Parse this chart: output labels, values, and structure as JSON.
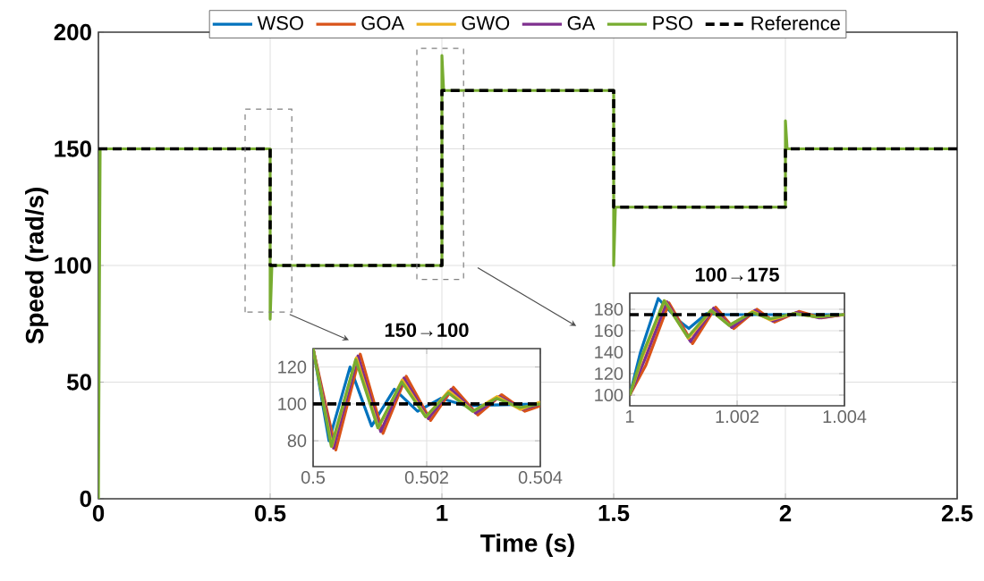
{
  "chart_data": [
    {
      "type": "line",
      "xlabel": "Time (s)",
      "ylabel": "Speed (rad/s)",
      "xlim": [
        0,
        2.5
      ],
      "ylim": [
        0,
        200
      ],
      "xticks": [
        0,
        0.5,
        1,
        1.5,
        2,
        2.5
      ],
      "yticks": [
        0,
        50,
        100,
        150,
        200
      ],
      "grid": true,
      "legend": "top",
      "marker": "none",
      "series": [
        {
          "name": "WSO",
          "color": "#0072bd"
        },
        {
          "name": "GOA",
          "color": "#d95319"
        },
        {
          "name": "GWO",
          "color": "#edb120"
        },
        {
          "name": "GA",
          "color": "#7e2f8e"
        },
        {
          "name": "PSO",
          "color": "#77ac30",
          "x": [
            0,
            0.005,
            0.5,
            0.5,
            0.505,
            1,
            1,
            1.005,
            1.5,
            1.5,
            1.505,
            2,
            2,
            2.005,
            2.5
          ],
          "values": [
            0,
            150,
            150,
            77,
            100,
            100,
            190,
            175,
            175,
            100,
            125,
            125,
            162,
            150,
            150
          ]
        },
        {
          "name": "Reference",
          "color": "#000000",
          "line_style": "dashed",
          "x": [
            0,
            0.5,
            0.5,
            1,
            1,
            1.5,
            1.5,
            2,
            2,
            2.5
          ],
          "values": [
            150,
            150,
            100,
            100,
            175,
            175,
            125,
            125,
            150,
            150
          ]
        }
      ]
    },
    {
      "type": "line",
      "title": "150→100",
      "xlim": [
        0.5,
        0.504
      ],
      "ylim": [
        66,
        130
      ],
      "xticks": [
        0.5,
        0.502,
        0.504
      ],
      "yticks": [
        80,
        100,
        120
      ],
      "grid": true,
      "marker": "none",
      "series": [
        {
          "color": "#0072bd",
          "x": [
            0.5,
            0.50028,
            0.50065,
            0.50103,
            0.50143,
            0.50184,
            0.50225,
            0.5027,
            0.504
          ],
          "values": [
            130,
            80,
            120,
            88,
            108,
            96,
            103,
            99,
            100
          ]
        },
        {
          "color": "#d95319",
          "x": [
            0.5,
            0.5004,
            0.50083,
            0.50123,
            0.50164,
            0.50207,
            0.50247,
            0.5029,
            0.50332,
            0.50373,
            0.504
          ],
          "values": [
            130,
            75,
            127,
            84,
            115,
            91,
            109,
            94,
            105,
            96,
            99
          ]
        },
        {
          "color": "#7e2f8e",
          "x": [
            0.5,
            0.50036,
            0.50079,
            0.50119,
            0.5016,
            0.50203,
            0.50243,
            0.50286,
            0.50328,
            0.50369,
            0.504
          ],
          "values": [
            130,
            76,
            126,
            85,
            114,
            92,
            108,
            95,
            104,
            97,
            100
          ]
        },
        {
          "color": "#edb120",
          "x": [
            0.5,
            0.50033,
            0.50076,
            0.50115,
            0.50157,
            0.50199,
            0.50239,
            0.50282,
            0.50324,
            0.50365,
            0.504
          ],
          "values": [
            130,
            77,
            125,
            87,
            113,
            93,
            107,
            96,
            104,
            97,
            101
          ]
        },
        {
          "color": "#77ac30",
          "x": [
            0.5,
            0.50032,
            0.50075,
            0.50114,
            0.50156,
            0.50198,
            0.50238,
            0.50281,
            0.50323,
            0.50364,
            0.504
          ],
          "values": [
            130,
            77,
            124,
            87,
            112,
            93,
            106,
            96,
            103,
            98,
            100
          ]
        },
        {
          "color": "#000000",
          "line_style": "dashed",
          "x": [
            0.5,
            0.504
          ],
          "values": [
            100,
            100
          ]
        }
      ]
    },
    {
      "type": "line",
      "title": "100→175",
      "xlim": [
        1,
        1.004
      ],
      "ylim": [
        90,
        195
      ],
      "xticks": [
        1,
        1.002,
        1.004
      ],
      "yticks": [
        100,
        120,
        140,
        160,
        180
      ],
      "grid": true,
      "marker": "none",
      "series": [
        {
          "color": "#0072bd",
          "x": [
            1,
            1.0002,
            1.00053,
            1.0009,
            1.0011,
            1.00143,
            1.0018,
            1.004
          ],
          "values": [
            100,
            140,
            190,
            170,
            162,
            176,
            175,
            175
          ]
        },
        {
          "color": "#d95319",
          "x": [
            1,
            1.0003,
            1.00073,
            1.00117,
            1.0016,
            1.00194,
            1.00237,
            1.0027,
            1.00315,
            1.00357,
            1.004
          ],
          "values": [
            100,
            128,
            186,
            148,
            182,
            162,
            180,
            168,
            178,
            172,
            175
          ]
        },
        {
          "color": "#7e2f8e",
          "x": [
            1,
            1.00027,
            1.00069,
            1.00113,
            1.00156,
            1.0019,
            1.00233,
            1.00266,
            1.00311,
            1.00353,
            1.004
          ],
          "values": [
            100,
            132,
            187,
            150,
            181,
            163,
            179,
            169,
            177,
            172,
            175
          ]
        },
        {
          "color": "#edb120",
          "x": [
            1,
            1.00024,
            1.00065,
            1.00109,
            1.00152,
            1.00186,
            1.00229,
            1.00262,
            1.00307,
            1.00349,
            1.004
          ],
          "values": [
            100,
            136,
            188,
            153,
            179,
            165,
            178,
            170,
            176,
            173,
            175
          ]
        },
        {
          "color": "#77ac30",
          "x": [
            1,
            1.00023,
            1.00064,
            1.00108,
            1.00151,
            1.00185,
            1.00228,
            1.00261,
            1.00306,
            1.00348,
            1.004
          ],
          "values": [
            100,
            137,
            188,
            154,
            179,
            165,
            177,
            171,
            176,
            173,
            175
          ]
        },
        {
          "color": "#000000",
          "line_style": "dashed",
          "x": [
            1,
            1.004
          ],
          "values": [
            175,
            175
          ]
        }
      ]
    }
  ]
}
